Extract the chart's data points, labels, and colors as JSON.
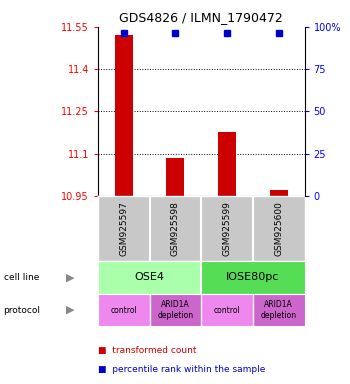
{
  "title": "GDS4826 / ILMN_1790472",
  "samples": [
    "GSM925597",
    "GSM925598",
    "GSM925599",
    "GSM925600"
  ],
  "red_values": [
    11.52,
    11.085,
    11.175,
    10.97
  ],
  "blue_values": [
    96.5,
    96.5,
    96.5,
    96.5
  ],
  "ylim_left": [
    10.95,
    11.55
  ],
  "ylim_right": [
    0,
    100
  ],
  "yticks_left": [
    10.95,
    11.1,
    11.25,
    11.4,
    11.55
  ],
  "yticks_right": [
    0,
    25,
    50,
    75,
    100
  ],
  "ytick_labels_left": [
    "10.95",
    "11.1",
    "11.25",
    "11.4",
    "11.55"
  ],
  "ytick_labels_right": [
    "0",
    "25",
    "50",
    "75",
    "100%"
  ],
  "cell_line_labels": [
    "OSE4",
    "IOSE80pc"
  ],
  "cell_line_spans": [
    [
      0,
      2
    ],
    [
      2,
      4
    ]
  ],
  "cell_line_colors": [
    "#aaffaa",
    "#55dd55"
  ],
  "protocol_labels": [
    "control",
    "ARID1A\ndepletion",
    "control",
    "ARID1A\ndepletion"
  ],
  "protocol_colors": [
    "#ee88ee",
    "#cc66cc",
    "#ee88ee",
    "#cc66cc"
  ],
  "legend_red_label": "transformed count",
  "legend_blue_label": "percentile rank within the sample",
  "bar_color": "#cc0000",
  "dot_color": "#0000cc",
  "bar_width": 0.35,
  "background_color": "#ffffff",
  "gsm_bg": "#c8c8c8",
  "row_label_color": "#888888"
}
